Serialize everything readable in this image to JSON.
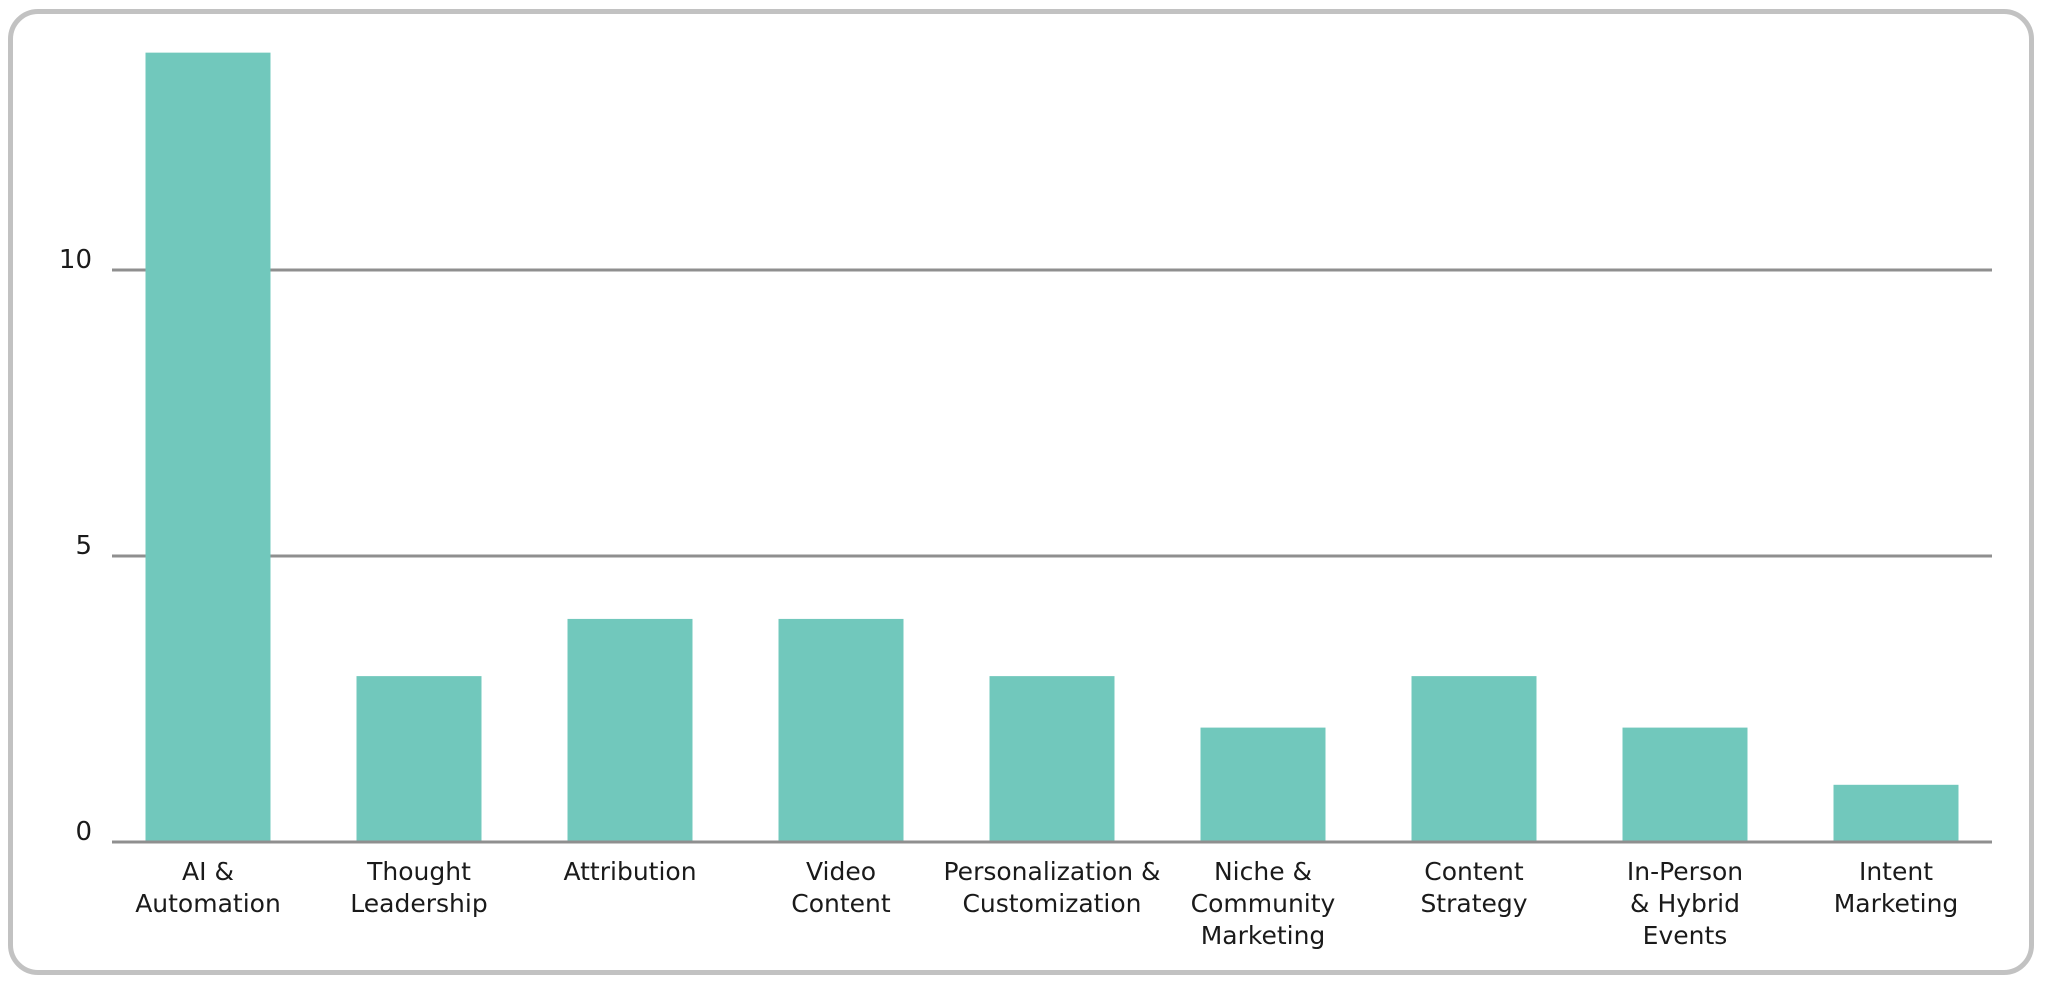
{
  "chart_data": {
    "type": "bar",
    "categories": [
      [
        "AI &",
        "Automation"
      ],
      [
        "Thought",
        "Leadership"
      ],
      [
        "Attribution"
      ],
      [
        "Video",
        "Content"
      ],
      [
        "Personalization &",
        "Customization"
      ],
      [
        "Niche &",
        "Community",
        "Marketing"
      ],
      [
        "Content",
        "Strategy"
      ],
      [
        "In-Person",
        "& Hybrid",
        "Events"
      ],
      [
        "Intent",
        "Marketing"
      ]
    ],
    "values": [
      13.8,
      2.9,
      3.9,
      3.9,
      2.9,
      2.0,
      2.9,
      2.0,
      1.0
    ],
    "yticks": [
      0,
      5,
      10
    ],
    "ylim": [
      0,
      14
    ],
    "grid": true,
    "bar_color": "#71c8bc",
    "grid_color": "#8f8f8f",
    "border_color": "#c2c2c2"
  }
}
